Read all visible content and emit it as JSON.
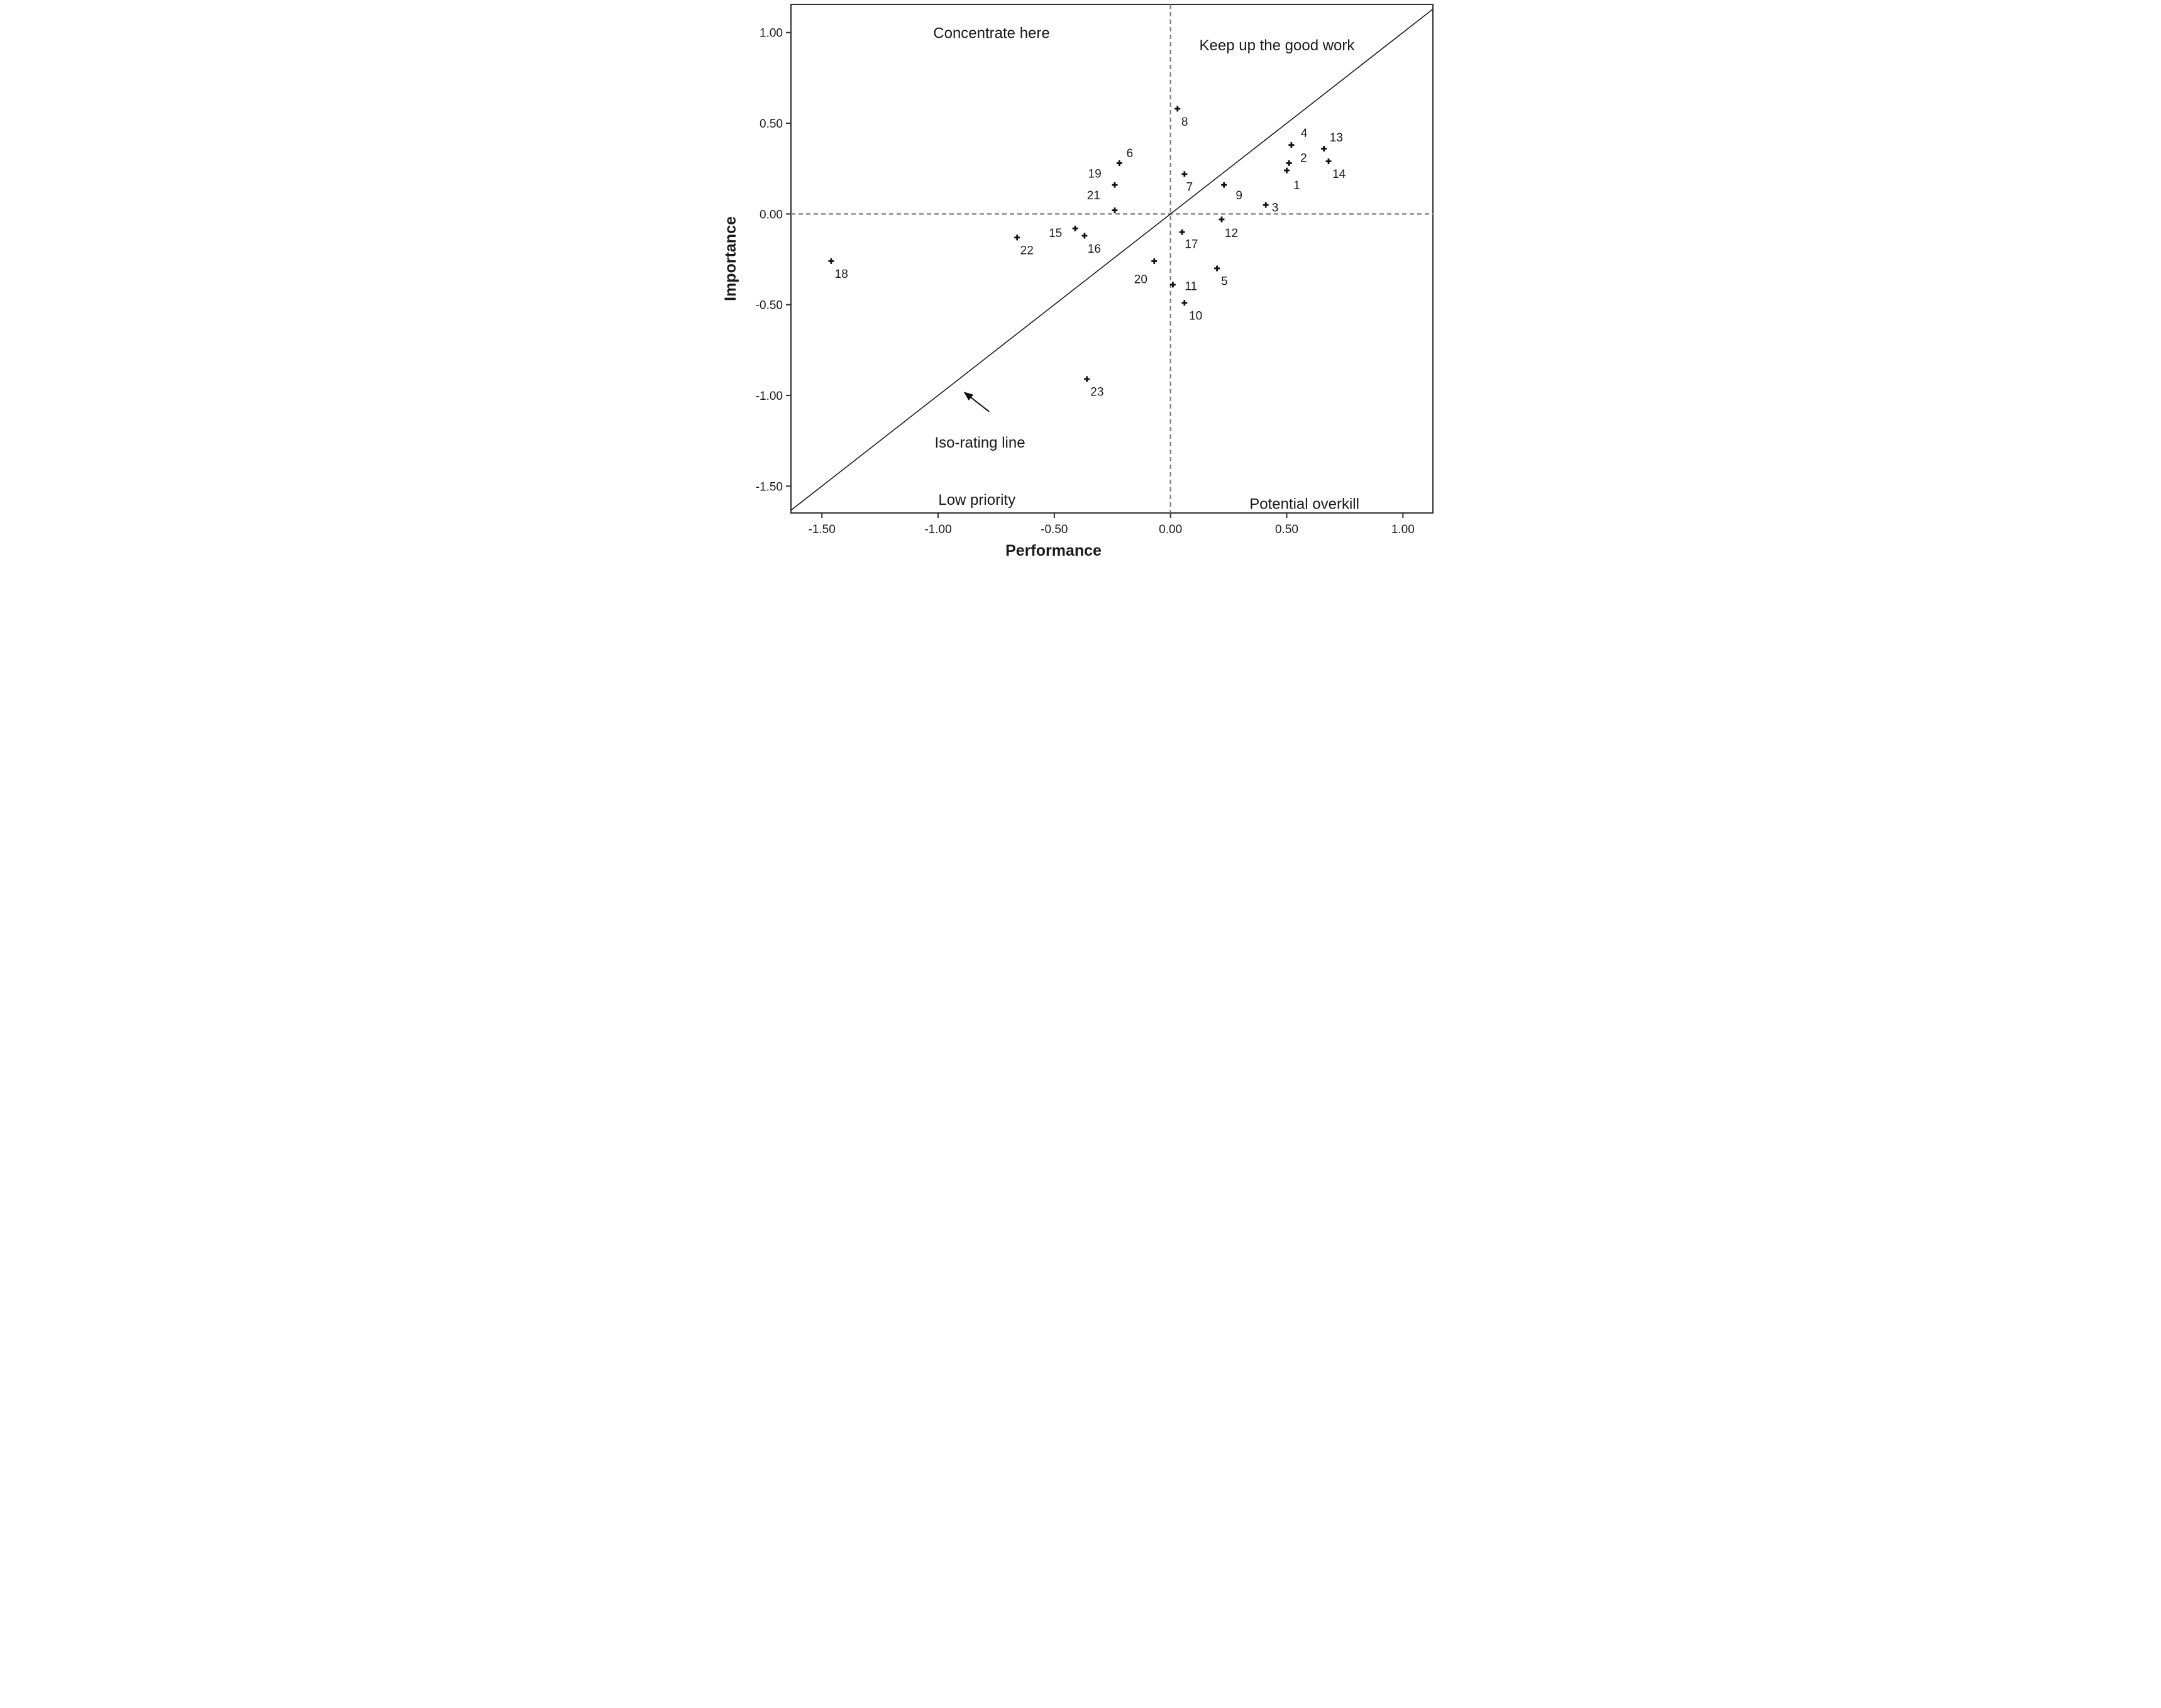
{
  "figure": {
    "background": "#ffffff",
    "text_color": "#1a1a1a",
    "axis_color": "#2e2e2e",
    "dashed_line_color": "#7d7d7d",
    "marker_color": "#111111"
  },
  "chart_data": {
    "type": "scatter",
    "title": "",
    "xlabel": "Performance",
    "ylabel": "Importance",
    "xlim": [
      -1.633,
      1.129
    ],
    "ylim": [
      -1.648,
      1.155
    ],
    "xticks": [
      -1.5,
      -1.0,
      -0.5,
      0.0,
      0.5,
      1.0
    ],
    "yticks": [
      1.0,
      0.5,
      0.0,
      -0.5,
      -1.0,
      -1.5
    ],
    "grid": false,
    "legend": "none",
    "reference_lines": {
      "vertical_x": 0,
      "horizontal_y": 0,
      "style": "dashed"
    },
    "iso_line": {
      "label": "Iso-rating line",
      "slope": 1,
      "intercept": 0,
      "label_x": -0.82,
      "label_y": -1.26
    },
    "arrow": {
      "tail_x": -0.78,
      "tail_y": -1.09,
      "tip_x": -0.89,
      "tip_y": -0.98
    },
    "quadrant_labels": [
      {
        "text": "Concentrate here",
        "x": -0.77,
        "y": 0.998
      },
      {
        "text": "Keep up the good work",
        "x": 0.458,
        "y": 0.93
      },
      {
        "text": "Low priority",
        "x": -0.833,
        "y": -1.575
      },
      {
        "text": "Potential overkill",
        "x": 0.576,
        "y": -1.597
      }
    ],
    "points": [
      {
        "id": "1",
        "x": 0.5,
        "y": 0.24,
        "lx": 0.043,
        "ly": -0.08
      },
      {
        "id": "2",
        "x": 0.51,
        "y": 0.28,
        "lx": 0.063,
        "ly": 0.031
      },
      {
        "id": "3",
        "x": 0.41,
        "y": 0.05,
        "lx": 0.04,
        "ly": -0.012
      },
      {
        "id": "4",
        "x": 0.52,
        "y": 0.38,
        "lx": 0.055,
        "ly": 0.068
      },
      {
        "id": "5",
        "x": 0.2,
        "y": -0.3,
        "lx": 0.032,
        "ly": -0.067
      },
      {
        "id": "6",
        "x": -0.22,
        "y": 0.28,
        "lx": 0.045,
        "ly": 0.058
      },
      {
        "id": "7",
        "x": 0.06,
        "y": 0.22,
        "lx": 0.022,
        "ly": -0.068
      },
      {
        "id": "8",
        "x": 0.03,
        "y": 0.58,
        "lx": 0.031,
        "ly": -0.069
      },
      {
        "id": "9",
        "x": 0.23,
        "y": 0.16,
        "lx": 0.065,
        "ly": -0.054
      },
      {
        "id": "10",
        "x": 0.06,
        "y": -0.49,
        "lx": 0.048,
        "ly": -0.068
      },
      {
        "id": "11",
        "x": 0.01,
        "y": -0.39,
        "lx": 0.078,
        "ly": -0.005
      },
      {
        "id": "12",
        "x": 0.22,
        "y": -0.03,
        "lx": 0.042,
        "ly": -0.072
      },
      {
        "id": "13",
        "x": 0.66,
        "y": 0.36,
        "lx": 0.053,
        "ly": 0.064
      },
      {
        "id": "14",
        "x": 0.68,
        "y": 0.29,
        "lx": 0.045,
        "ly": -0.067
      },
      {
        "id": "15",
        "x": -0.41,
        "y": -0.08,
        "lx": -0.085,
        "ly": -0.023
      },
      {
        "id": "16",
        "x": -0.37,
        "y": -0.12,
        "lx": 0.042,
        "ly": -0.07
      },
      {
        "id": "17",
        "x": 0.05,
        "y": -0.1,
        "lx": 0.04,
        "ly": -0.063
      },
      {
        "id": "18",
        "x": -1.46,
        "y": -0.26,
        "lx": 0.044,
        "ly": -0.068
      },
      {
        "id": "19",
        "x": -0.24,
        "y": 0.16,
        "lx": -0.086,
        "ly": 0.064
      },
      {
        "id": "20",
        "x": -0.07,
        "y": -0.26,
        "lx": -0.058,
        "ly": -0.097
      },
      {
        "id": "21",
        "x": -0.24,
        "y": 0.02,
        "lx": -0.091,
        "ly": 0.085
      },
      {
        "id": "22",
        "x": -0.66,
        "y": -0.13,
        "lx": 0.042,
        "ly": -0.068
      },
      {
        "id": "23",
        "x": -0.36,
        "y": -0.91,
        "lx": 0.044,
        "ly": -0.068
      }
    ]
  }
}
